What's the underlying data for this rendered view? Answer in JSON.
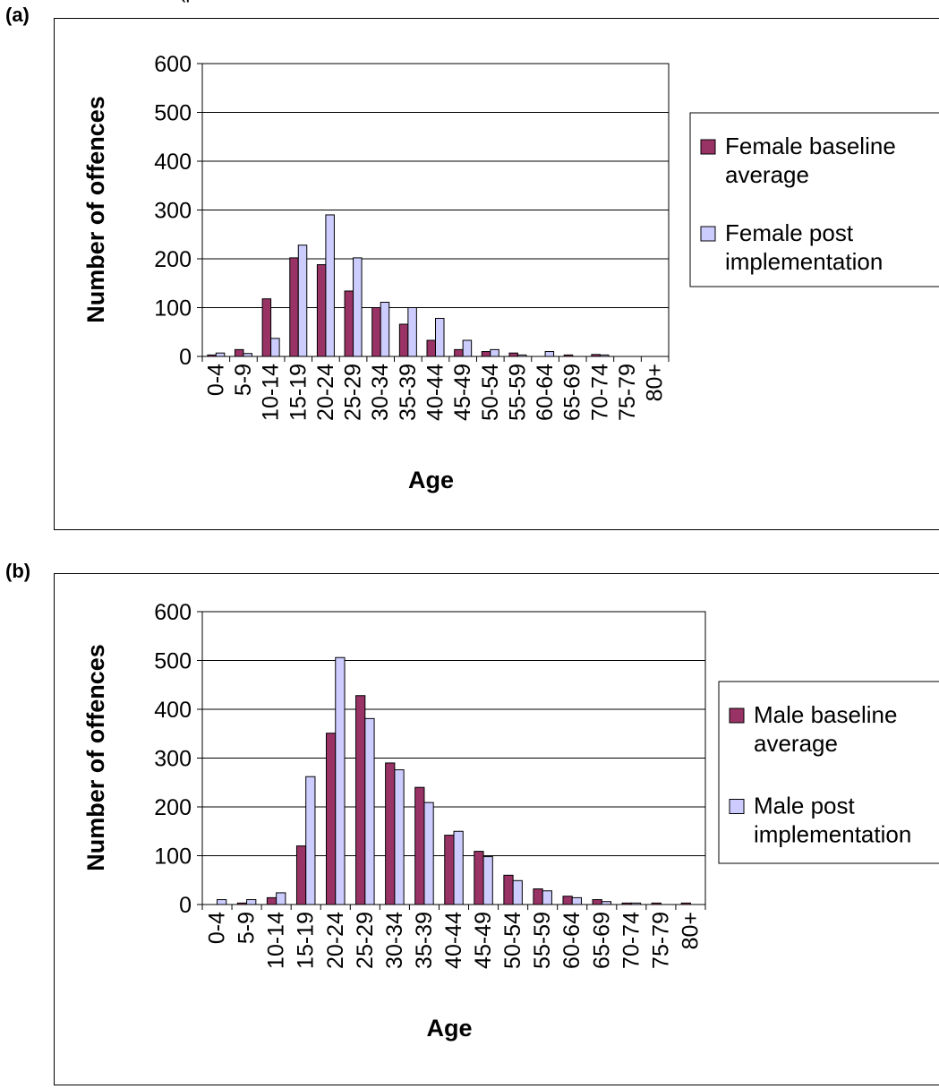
{
  "header": {
    "cutoff_text": "(p"
  },
  "chart_data": [
    {
      "panel_label": "(a)",
      "type": "bar",
      "categories": [
        "0-4",
        "5-9",
        "10-14",
        "15-19",
        "20-24",
        "25-29",
        "30-34",
        "35-39",
        "40-44",
        "45-49",
        "50-54",
        "55-59",
        "60-64",
        "65-69",
        "70-74",
        "75-79",
        "80+"
      ],
      "series": [
        {
          "name": "Female baseline average",
          "color": "#993366",
          "values": [
            3,
            14,
            118,
            202,
            188,
            134,
            100,
            66,
            33,
            14,
            10,
            7,
            0,
            3,
            4,
            0,
            0
          ]
        },
        {
          "name": "Female post implementation",
          "color": "#CCCCFF",
          "values": [
            7,
            6,
            37,
            228,
            290,
            202,
            111,
            100,
            78,
            33,
            14,
            3,
            10,
            0,
            3,
            0,
            0
          ]
        }
      ],
      "legend_lines": [
        [
          "Female baseline",
          "average"
        ],
        [
          "Female post",
          "implementation"
        ]
      ],
      "xlabel": "Age",
      "ylabel": "Number of offences",
      "yticks": [
        0,
        100,
        200,
        300,
        400,
        500,
        600
      ],
      "ylim": [
        0,
        600
      ],
      "grid": true,
      "legend": "right"
    },
    {
      "panel_label": "(b)",
      "type": "bar",
      "categories": [
        "0-4",
        "5-9",
        "10-14",
        "15-19",
        "20-24",
        "25-29",
        "30-34",
        "35-39",
        "40-44",
        "45-49",
        "50-54",
        "55-59",
        "60-64",
        "65-69",
        "70-74",
        "75-79",
        "80+"
      ],
      "series": [
        {
          "name": "Male baseline average",
          "color": "#993366",
          "values": [
            0,
            3,
            14,
            120,
            351,
            428,
            290,
            240,
            142,
            109,
            60,
            32,
            17,
            10,
            3,
            3,
            3
          ]
        },
        {
          "name": "Male post implementation",
          "color": "#CCCCFF",
          "values": [
            10,
            10,
            24,
            262,
            506,
            381,
            276,
            209,
            150,
            98,
            49,
            28,
            14,
            6,
            3,
            0,
            0
          ]
        }
      ],
      "legend_lines": [
        [
          "Male baseline",
          "average"
        ],
        [
          "Male post",
          "implementation"
        ]
      ],
      "xlabel": "Age",
      "ylabel": "Number of offences",
      "yticks": [
        0,
        100,
        200,
        300,
        400,
        500,
        600
      ],
      "ylim": [
        0,
        600
      ],
      "grid": true,
      "legend": "right"
    }
  ]
}
